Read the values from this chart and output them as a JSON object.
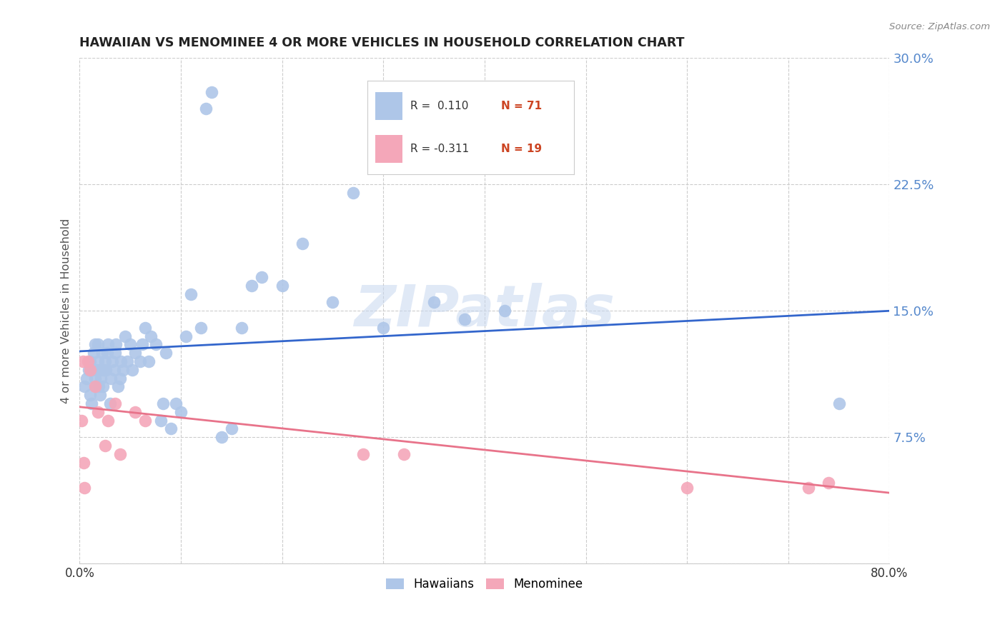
{
  "title": "HAWAIIAN VS MENOMINEE 4 OR MORE VEHICLES IN HOUSEHOLD CORRELATION CHART",
  "source": "Source: ZipAtlas.com",
  "ylabel": "4 or more Vehicles in Household",
  "yticks": [
    0.0,
    0.075,
    0.15,
    0.225,
    0.3
  ],
  "ytick_labels": [
    "",
    "7.5%",
    "15.0%",
    "22.5%",
    "30.0%"
  ],
  "xlim": [
    0.0,
    0.8
  ],
  "ylim": [
    0.0,
    0.3
  ],
  "watermark": "ZIPatlas",
  "hawaiians_color": "#aec6e8",
  "menominee_color": "#f4a7b9",
  "hawaiians_line_color": "#3366cc",
  "menominee_line_color": "#e8738a",
  "background_color": "#ffffff",
  "grid_color": "#cccccc",
  "hawaiians_x": [
    0.005,
    0.007,
    0.009,
    0.01,
    0.01,
    0.012,
    0.013,
    0.014,
    0.015,
    0.015,
    0.016,
    0.017,
    0.018,
    0.018,
    0.019,
    0.02,
    0.02,
    0.021,
    0.022,
    0.023,
    0.024,
    0.025,
    0.026,
    0.027,
    0.028,
    0.03,
    0.031,
    0.032,
    0.034,
    0.035,
    0.036,
    0.038,
    0.04,
    0.041,
    0.043,
    0.045,
    0.047,
    0.05,
    0.052,
    0.055,
    0.06,
    0.062,
    0.065,
    0.068,
    0.07,
    0.075,
    0.08,
    0.082,
    0.085,
    0.09,
    0.095,
    0.1,
    0.105,
    0.11,
    0.12,
    0.125,
    0.13,
    0.14,
    0.15,
    0.16,
    0.17,
    0.18,
    0.2,
    0.22,
    0.25,
    0.27,
    0.3,
    0.35,
    0.38,
    0.42,
    0.75
  ],
  "hawaiians_y": [
    0.105,
    0.11,
    0.115,
    0.1,
    0.12,
    0.095,
    0.115,
    0.125,
    0.11,
    0.13,
    0.105,
    0.115,
    0.12,
    0.13,
    0.105,
    0.1,
    0.115,
    0.11,
    0.125,
    0.105,
    0.115,
    0.12,
    0.115,
    0.125,
    0.13,
    0.095,
    0.11,
    0.12,
    0.115,
    0.125,
    0.13,
    0.105,
    0.11,
    0.12,
    0.115,
    0.135,
    0.12,
    0.13,
    0.115,
    0.125,
    0.12,
    0.13,
    0.14,
    0.12,
    0.135,
    0.13,
    0.085,
    0.095,
    0.125,
    0.08,
    0.095,
    0.09,
    0.135,
    0.16,
    0.14,
    0.27,
    0.28,
    0.075,
    0.08,
    0.14,
    0.165,
    0.17,
    0.165,
    0.19,
    0.155,
    0.22,
    0.14,
    0.155,
    0.145,
    0.15,
    0.095
  ],
  "menominee_x": [
    0.002,
    0.003,
    0.004,
    0.005,
    0.008,
    0.01,
    0.015,
    0.018,
    0.025,
    0.028,
    0.035,
    0.04,
    0.055,
    0.065,
    0.28,
    0.32,
    0.6,
    0.72,
    0.74
  ],
  "menominee_y": [
    0.085,
    0.12,
    0.06,
    0.045,
    0.12,
    0.115,
    0.105,
    0.09,
    0.07,
    0.085,
    0.095,
    0.065,
    0.09,
    0.085,
    0.065,
    0.065,
    0.045,
    0.045,
    0.048
  ],
  "h_trend_y0": 0.126,
  "h_trend_y1": 0.15,
  "m_trend_y0": 0.093,
  "m_trend_y1": 0.042
}
